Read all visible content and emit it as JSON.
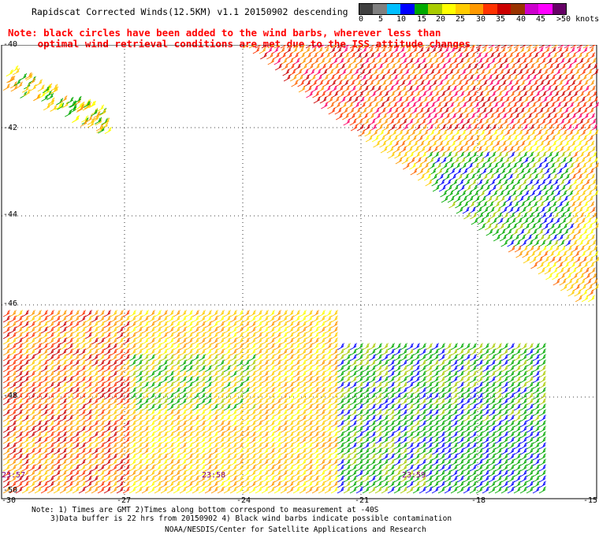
{
  "title": "Rapidscat Corrected Winds(12.5KM) v1.1 20150902 descending",
  "note_lines": [
    "Note: black circles have been added to the wind barbs, wherever less than",
    "     optimal wind retrieval conditions are met due to the ISS attitude changes."
  ],
  "colorbar": {
    "colors": [
      "#404040",
      "#808080",
      "#00bfff",
      "#0000ff",
      "#00aa00",
      "#aacc00",
      "#ffff00",
      "#ffcc00",
      "#ff9900",
      "#ff3300",
      "#cc0000",
      "#993300",
      "#cc00cc",
      "#ff00ff",
      "#660066"
    ],
    "labels": [
      "0",
      "5",
      "10",
      "15",
      "20",
      "25",
      "30",
      "35",
      "40",
      "45",
      ">50 knots"
    ]
  },
  "lat_labels": [
    "-40",
    "-42",
    "-44",
    "-46",
    "-48",
    "-50"
  ],
  "lon_labels": [
    "-30",
    "-27",
    "-24",
    "-21",
    "-18",
    "-15"
  ],
  "time_labels": [
    "23:57",
    "23:58",
    "23:59"
  ],
  "footer": {
    "line1": "Note: 1) Times are GMT 2)Times along bottom correspond to measurement at -40S",
    "line2": "3)Data buffer is 22 hrs from 20150902 4) Black wind barbs indicate possible contamination",
    "line3": "NOAA/NESDIS/Center for Satellite Applications and Research"
  }
}
